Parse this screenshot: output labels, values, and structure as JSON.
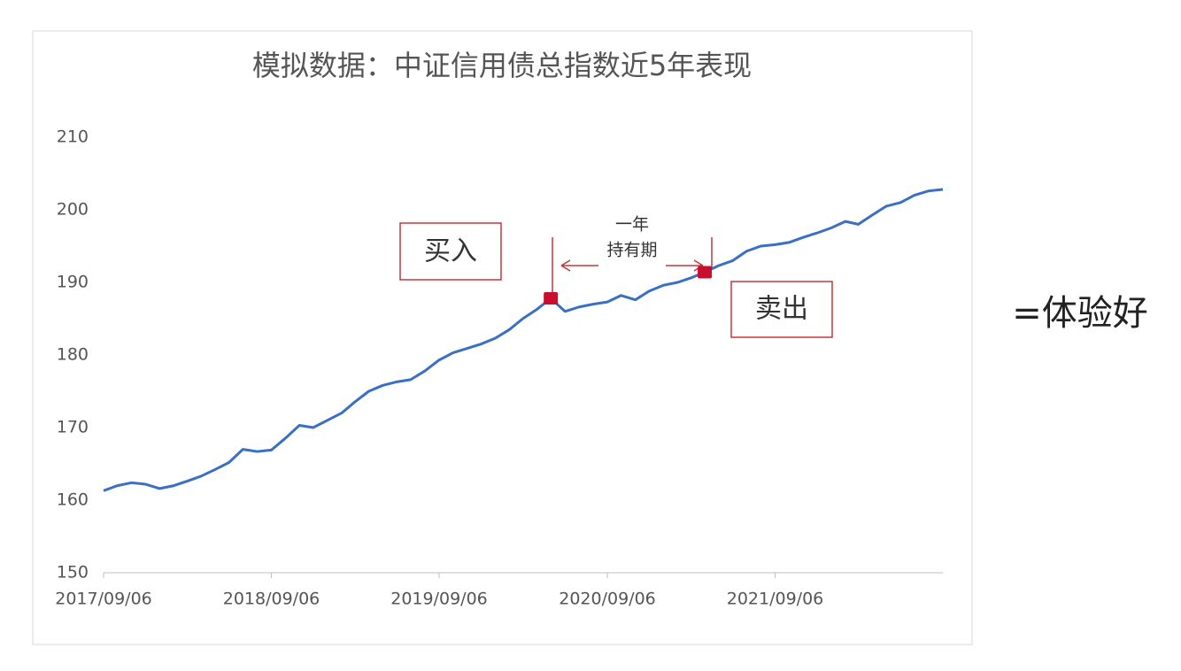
{
  "chart_data": {
    "type": "line",
    "title": "模拟数据：中证信用债总指数近5年表现",
    "x": [
      "2017/09/06",
      "2017/10/06",
      "2017/11/06",
      "2017/12/06",
      "2018/01/06",
      "2018/02/06",
      "2018/03/06",
      "2018/04/06",
      "2018/05/06",
      "2018/06/06",
      "2018/07/06",
      "2018/08/06",
      "2018/09/06",
      "2018/10/06",
      "2018/11/06",
      "2018/12/06",
      "2019/01/06",
      "2019/02/06",
      "2019/03/06",
      "2019/04/06",
      "2019/05/06",
      "2019/06/06",
      "2019/07/06",
      "2019/08/06",
      "2019/09/06",
      "2019/10/06",
      "2019/11/06",
      "2019/12/06",
      "2020/01/06",
      "2020/02/06",
      "2020/03/06",
      "2020/04/06",
      "2020/05/06",
      "2020/06/06",
      "2020/07/06",
      "2020/08/06",
      "2020/09/06",
      "2020/10/06",
      "2020/11/06",
      "2020/12/06",
      "2021/01/06",
      "2021/02/06",
      "2021/03/06",
      "2021/04/06",
      "2021/05/06",
      "2021/06/06",
      "2021/07/06",
      "2021/08/06",
      "2021/09/06",
      "2021/10/06",
      "2021/11/06",
      "2021/12/06",
      "2022/01/06",
      "2022/02/06",
      "2022/03/06",
      "2022/04/06",
      "2022/05/06",
      "2022/06/06",
      "2022/07/06",
      "2022/08/06",
      "2022/09/06"
    ],
    "series": [
      {
        "color": "#3a6fc4",
        "values": [
          161.3,
          162.0,
          162.4,
          162.2,
          161.6,
          162.0,
          162.6,
          163.3,
          164.2,
          165.2,
          167.0,
          166.7,
          166.9,
          168.5,
          170.3,
          170.0,
          171.0,
          172.0,
          173.5,
          175.0,
          175.8,
          176.3,
          176.6,
          177.8,
          179.3,
          180.3,
          180.9,
          181.5,
          182.3,
          183.5,
          185.0,
          186.3,
          187.8,
          186.0,
          186.6,
          187.0,
          187.3,
          188.2,
          187.6,
          188.8,
          189.6,
          190.0,
          190.6,
          191.4,
          192.3,
          193.0,
          194.3,
          195.0,
          195.2,
          195.5,
          196.2,
          196.8,
          197.5,
          198.4,
          198.0,
          199.3,
          200.5,
          201.0,
          202.0,
          202.6,
          202.8
        ]
      }
    ],
    "xlim": [
      "2017/09/06",
      "2022/09/06"
    ],
    "xticks": [
      "2017/09/06",
      "2018/09/06",
      "2019/09/06",
      "2020/09/06",
      "2021/09/06"
    ],
    "ylim": [
      150,
      210
    ],
    "yticks": [
      150,
      160,
      170,
      180,
      190,
      200,
      210
    ],
    "grid": false,
    "markers": [
      {
        "x": "2020/05/06",
        "y": 187.8,
        "color": "#c8102e"
      },
      {
        "x": "2021/04/06",
        "y": 191.4,
        "color": "#c8102e"
      }
    ],
    "annotations": {
      "buy": "买入",
      "sell": "卖出",
      "period_line1": "一年",
      "period_line2": "持有期",
      "note": "=体验好"
    }
  }
}
